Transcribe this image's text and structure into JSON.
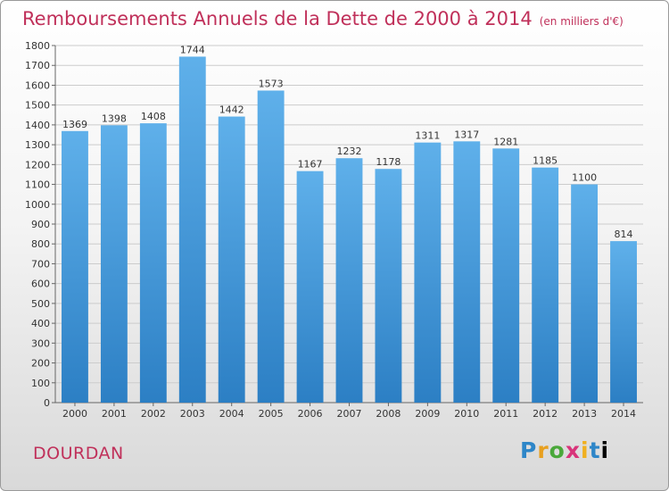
{
  "title": "Remboursements Annuels de la Dette de 2000 à 2014",
  "subtitle": "(en milliers d'€)",
  "commune": "DOURDAN",
  "logo": [
    "P",
    "r",
    "o",
    "x",
    "i",
    "t",
    "i"
  ],
  "colors": {
    "title": "#c0305a",
    "bar_top": "#5fb0ea",
    "bar_bottom": "#2c7fc4",
    "grid": "#cccccc"
  },
  "chart_data": {
    "type": "bar",
    "categories": [
      "2000",
      "2001",
      "2002",
      "2003",
      "2004",
      "2005",
      "2006",
      "2007",
      "2008",
      "2009",
      "2010",
      "2011",
      "2012",
      "2013",
      "2014"
    ],
    "values": [
      1369,
      1398,
      1408,
      1744,
      1442,
      1573,
      1167,
      1232,
      1178,
      1311,
      1317,
      1281,
      1185,
      1100,
      814
    ],
    "title": "Remboursements Annuels de la Dette de 2000 à 2014",
    "xlabel": "",
    "ylabel": "",
    "ylim": [
      0,
      1800
    ],
    "yticks": [
      0,
      100,
      200,
      300,
      400,
      500,
      600,
      700,
      800,
      900,
      1000,
      1100,
      1200,
      1300,
      1400,
      1500,
      1600,
      1700,
      1800
    ],
    "grid": true,
    "data_labels": true
  }
}
